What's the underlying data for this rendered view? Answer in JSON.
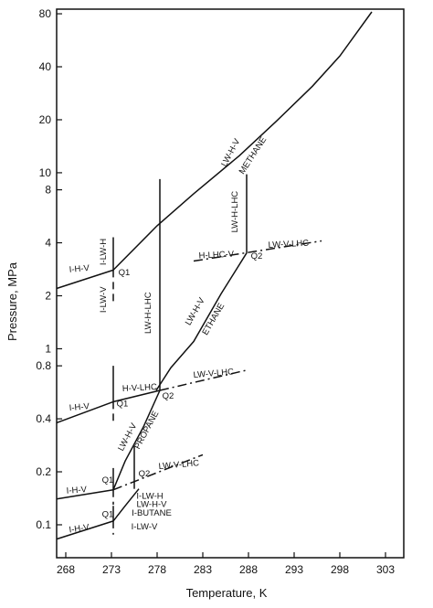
{
  "chart_data": {
    "type": "line",
    "title": "",
    "xlabel": "Temperature, K",
    "ylabel": "Pressure, MPa",
    "xlim": [
      267,
      305
    ],
    "ylim": [
      0.065,
      85
    ],
    "yscale": "log",
    "grid": false,
    "legend": "none",
    "xticks": [
      268,
      273,
      278,
      283,
      288,
      293,
      298,
      303
    ],
    "yticks": [
      {
        "v": 0.1,
        "label": "0.1"
      },
      {
        "v": 0.2,
        "label": "0.2"
      },
      {
        "v": 0.4,
        "label": "0.4"
      },
      {
        "v": 0.8,
        "label": "0.8"
      },
      {
        "v": 1,
        "label": "1"
      },
      {
        "v": 2,
        "label": "2"
      },
      {
        "v": 4,
        "label": "4"
      },
      {
        "v": 8,
        "label": "8"
      },
      {
        "v": 10,
        "label": "10"
      },
      {
        "v": 20,
        "label": "20"
      },
      {
        "v": 40,
        "label": "40"
      },
      {
        "v": 80,
        "label": "80"
      }
    ],
    "curves": [
      {
        "style": "solid",
        "points": [
          [
            267,
            2.2
          ],
          [
            273.2,
            2.8
          ]
        ]
      },
      {
        "style": "solid",
        "points": [
          [
            273.2,
            2.8
          ],
          [
            273.2,
            4.3
          ]
        ]
      },
      {
        "style": "dashed",
        "points": [
          [
            273.2,
            2.8
          ],
          [
            273.2,
            1.85
          ]
        ]
      },
      {
        "style": "solid",
        "points": [
          [
            273.2,
            2.8
          ],
          [
            278,
            5.0
          ],
          [
            282,
            7.6
          ],
          [
            287,
            12.5
          ],
          [
            291,
            19.5
          ],
          [
            295,
            31
          ],
          [
            298,
            46
          ],
          [
            301.5,
            82
          ]
        ]
      },
      {
        "style": "dashdot",
        "points": [
          [
            282,
            3.15
          ],
          [
            296,
            4.1
          ]
        ]
      },
      {
        "style": "solid",
        "points": [
          [
            287.8,
            3.5
          ],
          [
            287.8,
            9.8
          ]
        ]
      },
      {
        "style": "solid",
        "points": [
          [
            277.9,
            0.58
          ],
          [
            279.5,
            0.78
          ],
          [
            282,
            1.1
          ],
          [
            285,
            2.05
          ],
          [
            287.8,
            3.5
          ]
        ]
      },
      {
        "style": "solid",
        "points": [
          [
            278.3,
            0.58
          ],
          [
            278.3,
            9.2
          ]
        ]
      },
      {
        "style": "solid",
        "points": [
          [
            267,
            0.38
          ],
          [
            273.2,
            0.5
          ]
        ]
      },
      {
        "style": "solid",
        "points": [
          [
            273.2,
            0.5
          ],
          [
            273.2,
            0.8
          ]
        ]
      },
      {
        "style": "dashed",
        "points": [
          [
            273.2,
            0.5
          ],
          [
            273.2,
            0.39
          ]
        ]
      },
      {
        "style": "solid",
        "points": [
          [
            273.2,
            0.5
          ],
          [
            278.3,
            0.58
          ]
        ]
      },
      {
        "style": "dashdot",
        "points": [
          [
            278.3,
            0.58
          ],
          [
            288,
            0.76
          ]
        ]
      },
      {
        "style": "solid",
        "points": [
          [
            273.2,
            0.158
          ],
          [
            274.5,
            0.23
          ],
          [
            276.5,
            0.36
          ],
          [
            278.3,
            0.58
          ]
        ]
      },
      {
        "style": "solid",
        "points": [
          [
            275.5,
            0.16
          ],
          [
            275.5,
            0.28
          ]
        ]
      },
      {
        "style": "solid",
        "points": [
          [
            267,
            0.14
          ],
          [
            273.2,
            0.158
          ]
        ]
      },
      {
        "style": "solid",
        "points": [
          [
            273.2,
            0.158
          ],
          [
            273.2,
            0.21
          ]
        ]
      },
      {
        "style": "dashed",
        "points": [
          [
            273.2,
            0.158
          ],
          [
            273.2,
            0.13
          ]
        ]
      },
      {
        "style": "dashdot",
        "points": [
          [
            273.2,
            0.158
          ],
          [
            283,
            0.25
          ]
        ]
      },
      {
        "style": "solid",
        "points": [
          [
            267,
            0.083
          ],
          [
            273.2,
            0.105
          ]
        ]
      },
      {
        "style": "solid",
        "points": [
          [
            273.2,
            0.105
          ],
          [
            273.2,
            0.128
          ]
        ]
      },
      {
        "style": "dashed",
        "points": [
          [
            273.2,
            0.105
          ],
          [
            273.2,
            0.088
          ]
        ]
      },
      {
        "style": "solid",
        "points": [
          [
            273.2,
            0.105
          ],
          [
            274.5,
            0.128
          ],
          [
            276,
            0.16
          ]
        ]
      }
    ],
    "annotations": [
      {
        "text": "LW-H-V",
        "x": 286.3,
        "y": 12.8,
        "rot": -62
      },
      {
        "text": "METHANE",
        "x": 288.7,
        "y": 12.3,
        "rot": -57
      },
      {
        "text": "I-H-V",
        "x": 269.5,
        "y": 2.75,
        "rot": -5
      },
      {
        "text": "I-LW-H",
        "x": 272.4,
        "y": 3.55,
        "rot": -90
      },
      {
        "text": "I-LW-V",
        "x": 272.4,
        "y": 1.9,
        "rot": -90
      },
      {
        "text": "Q1",
        "x": 274.4,
        "y": 2.62,
        "rot": 0
      },
      {
        "text": "LW-H-LHC",
        "x": 277.3,
        "y": 1.6,
        "rot": -90
      },
      {
        "text": "LW-H-V",
        "x": 282.4,
        "y": 1.6,
        "rot": -60
      },
      {
        "text": "ETHANE",
        "x": 284.4,
        "y": 1.45,
        "rot": -60
      },
      {
        "text": "H-LHC-V",
        "x": 284.5,
        "y": 3.3,
        "rot": -3
      },
      {
        "text": "LW-V-LHC",
        "x": 292.4,
        "y": 3.8,
        "rot": -3
      },
      {
        "text": "LW-H-LHC",
        "x": 286.8,
        "y": 6.0,
        "rot": -90
      },
      {
        "text": "Q2",
        "x": 288.9,
        "y": 3.25,
        "rot": 0
      },
      {
        "text": "I-H-V",
        "x": 269.5,
        "y": 0.45,
        "rot": -5
      },
      {
        "text": "Q1",
        "x": 274.2,
        "y": 0.47,
        "rot": 0
      },
      {
        "text": "H-V-LHC",
        "x": 276.1,
        "y": 0.58,
        "rot": -3
      },
      {
        "text": "Q2",
        "x": 279.2,
        "y": 0.52,
        "rot": 0
      },
      {
        "text": "LW-V-LHC",
        "x": 284.2,
        "y": 0.7,
        "rot": -5
      },
      {
        "text": "LW-H-V",
        "x": 275.0,
        "y": 0.31,
        "rot": -62
      },
      {
        "text": "PROPANE",
        "x": 277.1,
        "y": 0.34,
        "rot": -62
      },
      {
        "text": "I-H-V",
        "x": 269.2,
        "y": 0.152,
        "rot": -4
      },
      {
        "text": "Q1",
        "x": 272.6,
        "y": 0.173,
        "rot": 0
      },
      {
        "text": "Q2",
        "x": 276.6,
        "y": 0.188,
        "rot": 0
      },
      {
        "text": "LW-V-LHC",
        "x": 280.4,
        "y": 0.212,
        "rot": -5
      },
      {
        "text": "I-LW-H",
        "x": 277.2,
        "y": 0.141,
        "rot": 0
      },
      {
        "text": "LW-H-V",
        "x": 277.4,
        "y": 0.126,
        "rot": 0
      },
      {
        "text": "I-BUTANE",
        "x": 277.4,
        "y": 0.113,
        "rot": 0
      },
      {
        "text": "I-H-V",
        "x": 269.5,
        "y": 0.092,
        "rot": -8
      },
      {
        "text": "Q1",
        "x": 272.6,
        "y": 0.111,
        "rot": 0
      },
      {
        "text": "I-LW-V",
        "x": 276.6,
        "y": 0.094,
        "rot": 0
      }
    ]
  }
}
